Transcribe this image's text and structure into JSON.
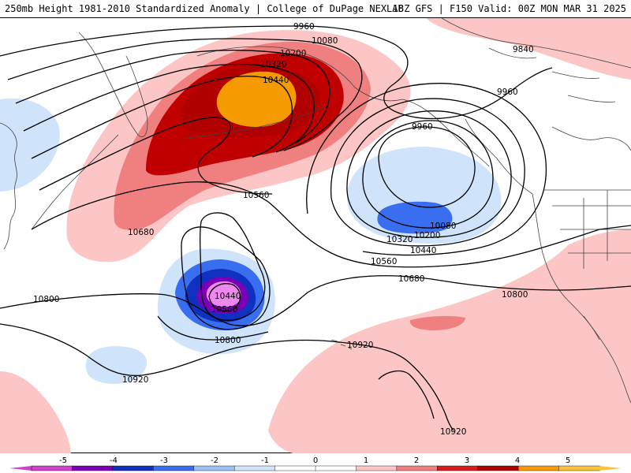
{
  "header": {
    "left_title": "250mb Height 1981-2010 Standardized Anomaly | College of DuPage NEXLAB",
    "right_title": "18Z GFS | F150 Valid: 00Z MON MAR 31 2025"
  },
  "contour_labels": {
    "c9960_a": "9960",
    "c10080_a": "10080",
    "c10200_a": "10200",
    "c10320_a": "10320",
    "c10440_a": "10440",
    "c9840": "9840",
    "c9960_b": "9960",
    "c9960_c": "9960",
    "c10560_a": "10560",
    "c10080_b": "10080",
    "c10200_b": "10200",
    "c10320_b": "10320",
    "c10440_b": "10440",
    "c10680_a": "10680",
    "c10560_b": "10560",
    "c10680_b": "10680",
    "c10800_a": "10800",
    "c10800_b": "10800",
    "c10440_c": "10440",
    "c10560_c": "10560",
    "c10800_c": "10800",
    "c10920_a": "10920",
    "c10920_b": "10920",
    "c10920_c": "10920"
  },
  "colorbar": {
    "ticks": [
      "-5",
      "-4",
      "-3",
      "-2",
      "-1",
      "0",
      "1",
      "2",
      "3",
      "4",
      "5"
    ],
    "colors": [
      "#cc44cc",
      "#7a00b8",
      "#1030c0",
      "#3a6ef0",
      "#9cc2f5",
      "#cfe3fa",
      "#ffffff",
      "#ffffff",
      "#fcc6c6",
      "#f08080",
      "#d81c1c",
      "#b00000",
      "#f59a00",
      "#f8c23a"
    ]
  },
  "colors": {
    "neg1": "#cfe3fa",
    "neg2": "#3a6ef0",
    "neg3": "#1030c0",
    "neg4": "#7a00b8",
    "neg5": "#ee88ee",
    "pos1": "#fcc6c6",
    "pos2": "#f08080",
    "pos3": "#d81c1c",
    "pos4": "#c00000",
    "pos5": "#f59a00"
  }
}
